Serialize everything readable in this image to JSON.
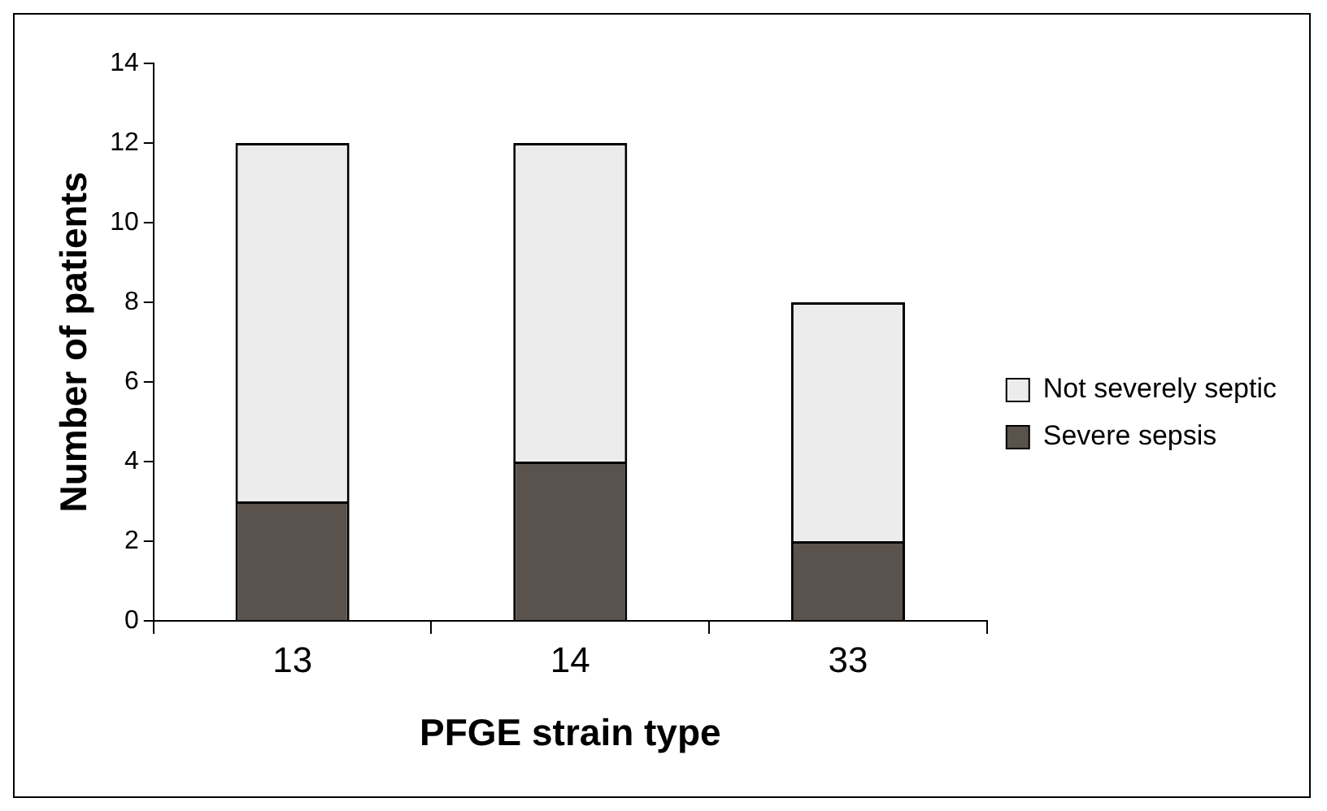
{
  "chart_data": {
    "type": "bar",
    "xlabel": "PFGE strain type",
    "ylabel": "Number of patients",
    "categories": [
      "13",
      "14",
      "33"
    ],
    "stacked": true,
    "ylim": [
      0,
      14
    ],
    "yticks": [
      0,
      2,
      4,
      6,
      8,
      10,
      12,
      14
    ],
    "grid": false,
    "legend": "right",
    "series": [
      {
        "name": "Severe sepsis",
        "color": "#5a524c",
        "values": [
          3,
          4,
          2
        ]
      },
      {
        "name": "Not severely septic",
        "color": "#ececec",
        "values": [
          9,
          8,
          6
        ]
      }
    ]
  }
}
